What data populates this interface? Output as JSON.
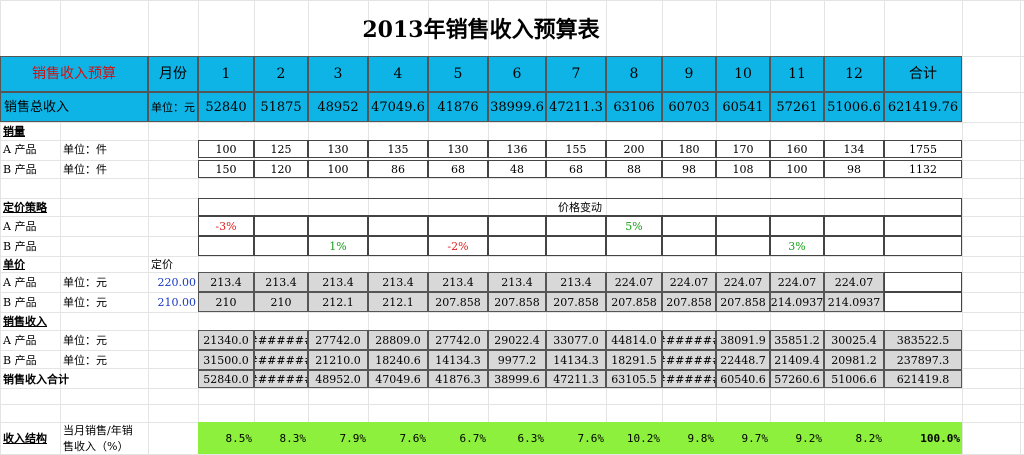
{
  "title": "2013年销售收入预算表",
  "header": {
    "label": "销售收入预算",
    "month_label": "月份",
    "months": [
      "1",
      "2",
      "3",
      "4",
      "5",
      "6",
      "7",
      "8",
      "9",
      "10",
      "11",
      "12"
    ],
    "total_label": "合计"
  },
  "total_row": {
    "label": "销售总收入",
    "unit": "单位：元",
    "values": [
      "52840",
      "51875",
      "48952",
      "47049.6",
      "41876",
      "38999.6",
      "47211.3",
      "63106",
      "60703",
      "60541",
      "57261",
      "51006.6"
    ],
    "total": "621419.76"
  },
  "volume": {
    "section": "销量",
    "rows": [
      {
        "product": "A 产品",
        "unit": "单位：件",
        "values": [
          "100",
          "125",
          "130",
          "135",
          "130",
          "136",
          "155",
          "200",
          "180",
          "170",
          "160",
          "134"
        ],
        "total": "1755"
      },
      {
        "product": "B 产品",
        "unit": "单位：件",
        "values": [
          "150",
          "120",
          "100",
          "86",
          "68",
          "48",
          "68",
          "88",
          "98",
          "108",
          "100",
          "98"
        ],
        "total": "1132"
      }
    ]
  },
  "pricing": {
    "section": "定价策略",
    "change_label": "价格变动",
    "rows": [
      {
        "product": "A 产品",
        "values": [
          "-3%",
          "",
          "",
          "",
          "",
          "",
          "",
          "5%",
          "",
          "",
          "",
          ""
        ]
      },
      {
        "product": "B 产品",
        "values": [
          "",
          "",
          "1%",
          "",
          "-2%",
          "",
          "",
          "",
          "",
          "",
          "3%",
          ""
        ]
      }
    ]
  },
  "unit_price": {
    "section": "单价",
    "base_label": "定价",
    "rows": [
      {
        "product": "A 产品",
        "unit": "单位：元",
        "base": "220.00",
        "values": [
          "213.4",
          "213.4",
          "213.4",
          "213.4",
          "213.4",
          "213.4",
          "213.4",
          "224.07",
          "224.07",
          "224.07",
          "224.07",
          "224.07"
        ]
      },
      {
        "product": "B 产品",
        "unit": "单位：元",
        "base": "210.00",
        "values": [
          "210",
          "210",
          "212.1",
          "212.1",
          "207.858",
          "207.858",
          "207.858",
          "207.858",
          "207.858",
          "207.858",
          "214.0937",
          "214.0937"
        ]
      }
    ]
  },
  "revenue": {
    "section": "销售收入",
    "rows": [
      {
        "product": "A 产品",
        "unit": "单位：元",
        "values": [
          "21340.0",
          "#######",
          "27742.0",
          "28809.0",
          "27742.0",
          "29022.4",
          "33077.0",
          "44814.0",
          "#######",
          "38091.9",
          "35851.2",
          "30025.4"
        ],
        "total": "383522.5"
      },
      {
        "product": "B 产品",
        "unit": "单位：元",
        "values": [
          "31500.0",
          "#######",
          "21210.0",
          "18240.6",
          "14134.3",
          "9977.2",
          "14134.3",
          "18291.5",
          "#######",
          "22448.7",
          "21409.4",
          "20981.2"
        ],
        "total": "237897.3"
      }
    ],
    "sum_label": "销售收入合计",
    "sum_values": [
      "52840.0",
      "#######",
      "48952.0",
      "47049.6",
      "41876.3",
      "38999.6",
      "47211.3",
      "63105.5",
      "#######",
      "60540.6",
      "57260.6",
      "51006.6"
    ],
    "sum_total": "621419.8"
  },
  "structure": {
    "section": "收入结构",
    "desc_line1": "当月销售/年销",
    "desc_line2": "售收入（%）",
    "values": [
      "8.5%",
      "8.3%",
      "7.9%",
      "7.6%",
      "6.7%",
      "6.3%",
      "7.6%",
      "10.2%",
      "9.8%",
      "9.7%",
      "9.2%",
      "8.2%"
    ],
    "total": "100.0%"
  },
  "colors": {
    "header_blue": "#0fb4e6",
    "green_band": "#8cf03c",
    "gray_cell": "#d8d8d8"
  }
}
